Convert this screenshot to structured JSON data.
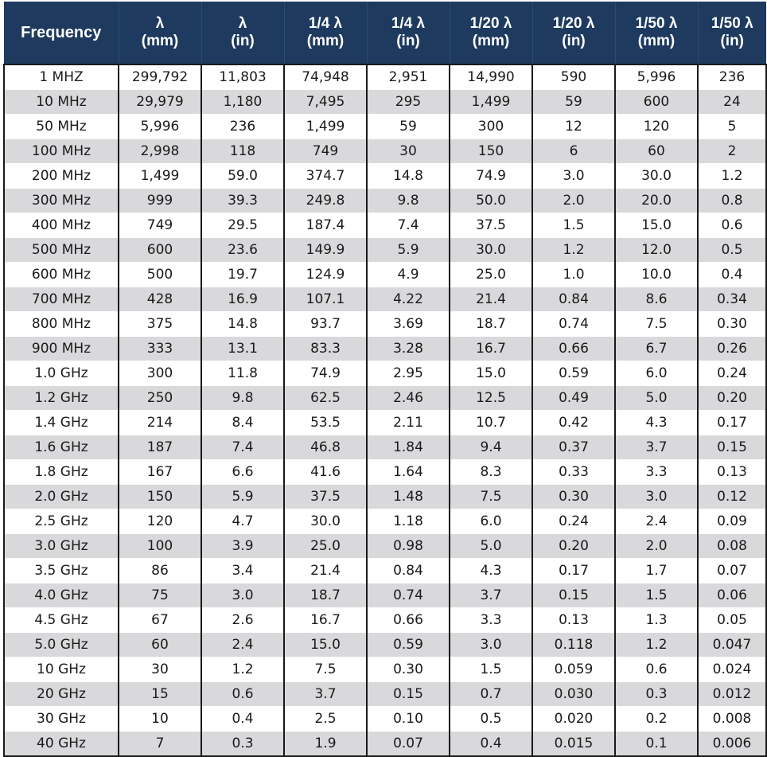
{
  "colors": {
    "header_bg": "#1e3a5f",
    "header_text": "#ffffff",
    "stripe": "#d9d9dc"
  },
  "table": {
    "headers": [
      {
        "l1": "Frequency",
        "l2": ""
      },
      {
        "l1": "λ",
        "l2": "(mm)"
      },
      {
        "l1": "λ",
        "l2": "(in)"
      },
      {
        "l1": "1/4 λ",
        "l2": "(mm)"
      },
      {
        "l1": "1/4 λ",
        "l2": "(in)"
      },
      {
        "l1": "1/20 λ",
        "l2": "(mm)"
      },
      {
        "l1": "1/20 λ",
        "l2": "(in)"
      },
      {
        "l1": "1/50 λ",
        "l2": "(mm)"
      },
      {
        "l1": "1/50 λ",
        "l2": "(in)"
      }
    ],
    "rows": [
      [
        "1 MHZ",
        "299,792",
        "11,803",
        "74,948",
        "2,951",
        "14,990",
        "590",
        "5,996",
        "236"
      ],
      [
        "10 MHz",
        "29,979",
        "1,180",
        "7,495",
        "295",
        "1,499",
        "59",
        "600",
        "24"
      ],
      [
        "50 MHz",
        "5,996",
        "236",
        "1,499",
        "59",
        "300",
        "12",
        "120",
        "5"
      ],
      [
        "100 MHz",
        "2,998",
        "118",
        "749",
        "30",
        "150",
        "6",
        "60",
        "2"
      ],
      [
        "200 MHz",
        "1,499",
        "59.0",
        "374.7",
        "14.8",
        "74.9",
        "3.0",
        "30.0",
        "1.2"
      ],
      [
        "300 MHz",
        "999",
        "39.3",
        "249.8",
        "9.8",
        "50.0",
        "2.0",
        "20.0",
        "0.8"
      ],
      [
        "400 MHz",
        "749",
        "29.5",
        "187.4",
        "7.4",
        "37.5",
        "1.5",
        "15.0",
        "0.6"
      ],
      [
        "500 MHz",
        "600",
        "23.6",
        "149.9",
        "5.9",
        "30.0",
        "1.2",
        "12.0",
        "0.5"
      ],
      [
        "600 MHz",
        "500",
        "19.7",
        "124.9",
        "4.9",
        "25.0",
        "1.0",
        "10.0",
        "0.4"
      ],
      [
        "700 MHz",
        "428",
        "16.9",
        "107.1",
        "4.22",
        "21.4",
        "0.84",
        "8.6",
        "0.34"
      ],
      [
        "800 MHz",
        "375",
        "14.8",
        "93.7",
        "3.69",
        "18.7",
        "0.74",
        "7.5",
        "0.30"
      ],
      [
        "900 MHz",
        "333",
        "13.1",
        "83.3",
        "3.28",
        "16.7",
        "0.66",
        "6.7",
        "0.26"
      ],
      [
        "1.0 GHz",
        "300",
        "11.8",
        "74.9",
        "2.95",
        "15.0",
        "0.59",
        "6.0",
        "0.24"
      ],
      [
        "1.2 GHz",
        "250",
        "9.8",
        "62.5",
        "2.46",
        "12.5",
        "0.49",
        "5.0",
        "0.20"
      ],
      [
        "1.4 GHz",
        "214",
        "8.4",
        "53.5",
        "2.11",
        "10.7",
        "0.42",
        "4.3",
        "0.17"
      ],
      [
        "1.6 GHz",
        "187",
        "7.4",
        "46.8",
        "1.84",
        "9.4",
        "0.37",
        "3.7",
        "0.15"
      ],
      [
        "1.8 GHz",
        "167",
        "6.6",
        "41.6",
        "1.64",
        "8.3",
        "0.33",
        "3.3",
        "0.13"
      ],
      [
        "2.0 GHz",
        "150",
        "5.9",
        "37.5",
        "1.48",
        "7.5",
        "0.30",
        "3.0",
        "0.12"
      ],
      [
        "2.5 GHz",
        "120",
        "4.7",
        "30.0",
        "1.18",
        "6.0",
        "0.24",
        "2.4",
        "0.09"
      ],
      [
        "3.0 GHz",
        "100",
        "3.9",
        "25.0",
        "0.98",
        "5.0",
        "0.20",
        "2.0",
        "0.08"
      ],
      [
        "3.5 GHz",
        "86",
        "3.4",
        "21.4",
        "0.84",
        "4.3",
        "0.17",
        "1.7",
        "0.07"
      ],
      [
        "4.0 GHz",
        "75",
        "3.0",
        "18.7",
        "0.74",
        "3.7",
        "0.15",
        "1.5",
        "0.06"
      ],
      [
        "4.5 GHz",
        "67",
        "2.6",
        "16.7",
        "0.66",
        "3.3",
        "0.13",
        "1.3",
        "0.05"
      ],
      [
        "5.0 GHz",
        "60",
        "2.4",
        "15.0",
        "0.59",
        "3.0",
        "0.118",
        "1.2",
        "0.047"
      ],
      [
        "10 GHz",
        "30",
        "1.2",
        "7.5",
        "0.30",
        "1.5",
        "0.059",
        "0.6",
        "0.024"
      ],
      [
        "20 GHz",
        "15",
        "0.6",
        "3.7",
        "0.15",
        "0.7",
        "0.030",
        "0.3",
        "0.012"
      ],
      [
        "30 GHz",
        "10",
        "0.4",
        "2.5",
        "0.10",
        "0.5",
        "0.020",
        "0.2",
        "0.008"
      ],
      [
        "40 GHz",
        "7",
        "0.3",
        "1.9",
        "0.07",
        "0.4",
        "0.015",
        "0.1",
        "0.006"
      ]
    ]
  }
}
